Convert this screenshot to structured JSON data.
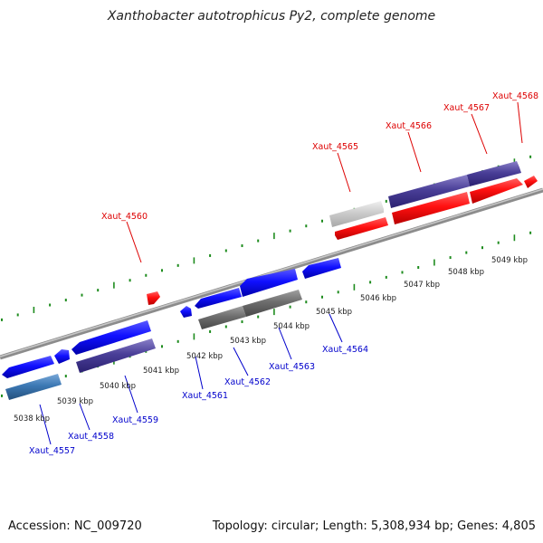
{
  "title": "Xanthobacter autotrophicus Py2, complete genome",
  "footer": {
    "accession": "Accession: NC_009720",
    "info": "Topology: circular; Length: 5,308,934 bp; Genes: 4,805"
  },
  "colors": {
    "backbone": "#8c8c8c",
    "tick": "#1e8c1e",
    "label_top": "#dd0000",
    "label_bottom": "#0000cc",
    "scale_text": "#222222"
  },
  "scale_labels": [
    "5038 kbp",
    "5039 kbp",
    "5040 kbp",
    "5041 kbp",
    "5042 kbp",
    "5043 kbp",
    "5044 kbp",
    "5045 kbp",
    "5046 kbp",
    "5047 kbp",
    "5048 kbp",
    "5049 kbp"
  ],
  "gene_labels": {
    "top": [
      "Xaut_4560",
      "Xaut_4565",
      "Xaut_4566",
      "Xaut_4567",
      "Xaut_4568"
    ],
    "bottom": [
      "Xaut_4557",
      "Xaut_4558",
      "Xaut_4559",
      "Xaut_4561",
      "Xaut_4562",
      "Xaut_4563",
      "Xaut_4564"
    ]
  }
}
